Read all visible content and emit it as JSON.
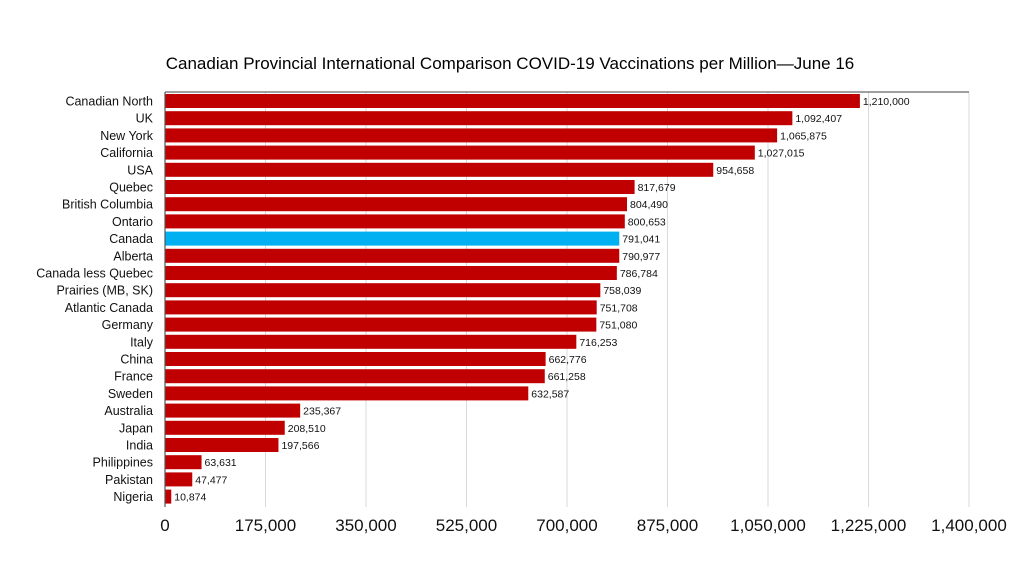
{
  "chart_data": {
    "type": "bar",
    "orientation": "horizontal",
    "title": "Canadian Provincial International Comparison COVID-19 Vaccinations per Million—June 16",
    "xlabel": "",
    "ylabel": "",
    "xlim": [
      0,
      1400000
    ],
    "grid": true,
    "legend": "none",
    "categories": [
      "Canadian North",
      "UK",
      "New York",
      "California",
      "USA",
      "Quebec",
      "British Columbia",
      "Ontario",
      "Canada",
      "Alberta",
      "Canada less Quebec",
      "Prairies (MB, SK)",
      "Atlantic Canada",
      "Germany",
      "Italy",
      "China",
      "France",
      "Sweden",
      "Australia",
      "Japan",
      "India",
      "Philippines",
      "Pakistan",
      "Nigeria"
    ],
    "values": [
      1210000,
      1092407,
      1065875,
      1027015,
      954658,
      817679,
      804490,
      800653,
      791041,
      790977,
      786784,
      758039,
      751708,
      751080,
      716253,
      662776,
      661258,
      632587,
      235367,
      208510,
      197566,
      63631,
      47477,
      10874
    ],
    "value_labels": [
      "1,210,000",
      "1,092,407",
      "1,065,875",
      "1,027,015",
      "954,658",
      "817,679",
      "804,490",
      "800,653",
      "791,041",
      "790,977",
      "786,784",
      "758,039",
      "751,708",
      "751,080",
      "716,253",
      "662,776",
      "661,258",
      "632,587",
      "235,367",
      "208,510",
      "197,566",
      "63,631",
      "47,477",
      "10,874"
    ],
    "highlight_category": "Canada",
    "xticks": [
      0,
      175000,
      350000,
      525000,
      700000,
      875000,
      1050000,
      1225000,
      1400000
    ],
    "xtick_labels": [
      "0",
      "175,000",
      "350,000",
      "525,000",
      "700,000",
      "875,000",
      "1,050,000",
      "1,225,000",
      "1,400,000"
    ],
    "colors": {
      "bar": "#C00000",
      "highlight": "#00B0F0"
    }
  }
}
